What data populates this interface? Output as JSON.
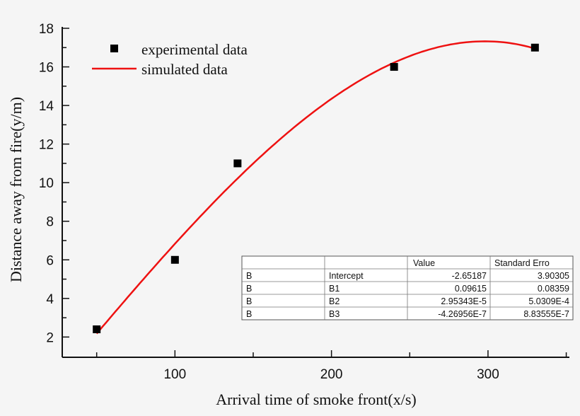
{
  "chart_data": {
    "type": "scatter",
    "title": "",
    "xlabel": "Arrival time of smoke front(x/s)",
    "ylabel": "Distance away from fire(y/m)",
    "xlim": [
      28,
      352
    ],
    "ylim": [
      0.95,
      18
    ],
    "xticks": [
      100,
      200,
      300
    ],
    "yticks": [
      2,
      4,
      6,
      8,
      10,
      12,
      14,
      16,
      18
    ],
    "grid": false,
    "legend_position": "top-left",
    "series": [
      {
        "name": "experimental data",
        "kind": "scatter",
        "marker": "square",
        "color": "#000000",
        "x": [
          50,
          100,
          140,
          240,
          330
        ],
        "y": [
          2.4,
          6,
          11,
          16,
          17
        ]
      },
      {
        "name": "simulated data",
        "kind": "line",
        "color": "#ee1111",
        "fit": "cubic polynomial",
        "x_range": [
          50,
          330
        ]
      }
    ],
    "table": {
      "headers": [
        "",
        "",
        "Value",
        "Standard Erro"
      ],
      "rows": [
        [
          "B",
          "Intercept",
          "-2.65187",
          "3.90305"
        ],
        [
          "B",
          "B1",
          "0.09615",
          "0.08359"
        ],
        [
          "B",
          "B2",
          "2.95343E-5",
          "5.0309E-4"
        ],
        [
          "B",
          "B3",
          "-4.26956E-7",
          "8.83555E-7"
        ]
      ]
    }
  }
}
